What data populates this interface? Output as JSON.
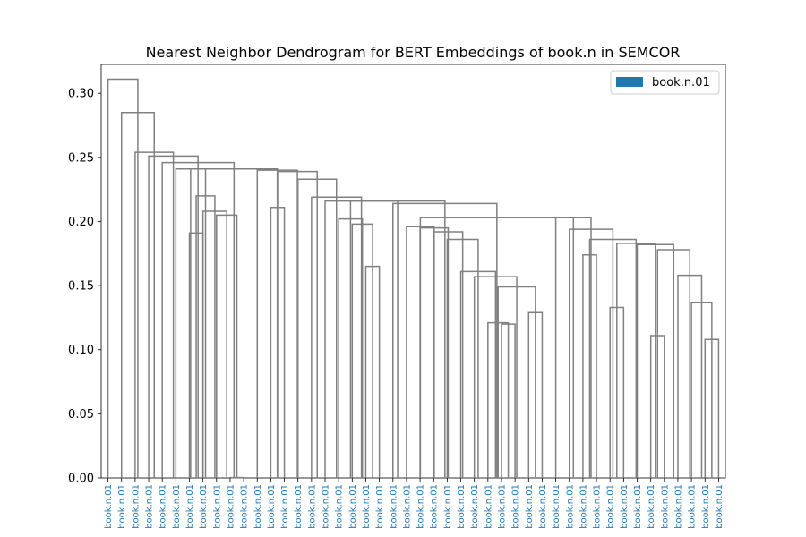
{
  "chart_data": {
    "type": "dendrogram",
    "title": "Nearest Neighbor Dendrogram for BERT Embeddings of book.n in SEMCOR",
    "xlabel": "",
    "ylabel": "",
    "ylim": [
      0,
      0.3225
    ],
    "y_ticks": [
      0.0,
      0.05,
      0.1,
      0.15,
      0.2,
      0.25,
      0.3
    ],
    "y_tick_labels": [
      "0.00",
      "0.05",
      "0.10",
      "0.15",
      "0.20",
      "0.25",
      "0.30"
    ],
    "grid": false,
    "legend": {
      "position": "top-right",
      "entries": [
        {
          "label": "book.n.01",
          "color": "#1f77b4"
        }
      ]
    },
    "leaf_label_color": "#1f77b4",
    "link_color": "#808080",
    "leaves": [
      "book.n.01",
      "book.n.01",
      "book.n.01",
      "book.n.01",
      "book.n.01",
      "book.n.01",
      "book.n.01",
      "book.n.01",
      "book.n.01",
      "book.n.01",
      "book.n.01",
      "book.n.01",
      "book.n.01",
      "book.n.01",
      "book.n.01",
      "book.n.01",
      "book.n.01",
      "book.n.01",
      "book.n.01",
      "book.n.01",
      "book.n.01",
      "book.n.01",
      "book.n.01",
      "book.n.01",
      "book.n.01",
      "book.n.01",
      "book.n.01",
      "book.n.01",
      "book.n.01",
      "book.n.01",
      "book.n.01",
      "book.n.01",
      "book.n.01",
      "book.n.01",
      "book.n.01",
      "book.n.01",
      "book.n.01",
      "book.n.01",
      "book.n.01",
      "book.n.01",
      "book.n.01",
      "book.n.01",
      "book.n.01",
      "book.n.01",
      "book.n.01",
      "book.n.01"
    ],
    "links": [
      {
        "x": [
          9,
          10
        ],
        "height": 0.0003
      },
      {
        "x": [
          6,
          7
        ],
        "height": 0.191
      },
      {
        "x": [
          12,
          13
        ],
        "height": 0.211
      },
      {
        "x": [
          19,
          20
        ],
        "height": 0.165
      },
      {
        "x": [
          29,
          30
        ],
        "height": 0.12
      },
      {
        "x": [
          28,
          29.5
        ],
        "height": 0.121
      },
      {
        "x": [
          31,
          32
        ],
        "height": 0.129
      },
      {
        "x": [
          28.75,
          31.5
        ],
        "height": 0.149
      },
      {
        "x": [
          27,
          30.125
        ],
        "height": 0.157
      },
      {
        "x": [
          26,
          28.5625
        ],
        "height": 0.161
      },
      {
        "x": [
          25,
          27.28
        ],
        "height": 0.186
      },
      {
        "x": [
          24,
          26.14
        ],
        "height": 0.192
      },
      {
        "x": [
          23,
          25.07
        ],
        "height": 0.195
      },
      {
        "x": [
          22,
          24.04
        ],
        "height": 0.196
      },
      {
        "x": [
          18,
          19.5
        ],
        "height": 0.198
      },
      {
        "x": [
          17,
          18.75
        ],
        "height": 0.202
      },
      {
        "x": [
          35,
          36
        ],
        "height": 0.174
      },
      {
        "x": [
          37,
          38
        ],
        "height": 0.133
      },
      {
        "x": [
          40,
          41
        ],
        "height": 0.111
      },
      {
        "x": [
          44,
          45
        ],
        "height": 0.108
      },
      {
        "x": [
          43,
          44.5
        ],
        "height": 0.137
      },
      {
        "x": [
          42,
          43.75
        ],
        "height": 0.158
      },
      {
        "x": [
          40.5,
          42.875
        ],
        "height": 0.178
      },
      {
        "x": [
          39,
          41.69
        ],
        "height": 0.182
      },
      {
        "x": [
          37.5,
          40.34
        ],
        "height": 0.183
      },
      {
        "x": [
          35.5,
          38.92
        ],
        "height": 0.186
      },
      {
        "x": [
          34,
          37.21
        ],
        "height": 0.194
      },
      {
        "x": [
          33,
          35.6
        ],
        "height": 0.203
      },
      {
        "x": [
          23.02,
          34.3
        ],
        "height": 0.203
      },
      {
        "x": [
          21,
          28.66
        ],
        "height": 0.214
      },
      {
        "x": [
          17.875,
          24.83
        ],
        "height": 0.216
      },
      {
        "x": [
          16,
          21.35
        ],
        "height": 0.216
      },
      {
        "x": [
          15,
          18.68
        ],
        "height": 0.219
      },
      {
        "x": [
          14,
          16.84
        ],
        "height": 0.233
      },
      {
        "x": [
          12.5,
          15.42
        ],
        "height": 0.239
      },
      {
        "x": [
          11,
          13.96
        ],
        "height": 0.24
      },
      {
        "x": [
          8,
          9.5
        ],
        "height": 0.205
      },
      {
        "x": [
          7,
          8.75
        ],
        "height": 0.208
      },
      {
        "x": [
          6.5,
          7.875
        ],
        "height": 0.22
      },
      {
        "x": [
          5,
          7.19
        ],
        "height": 0.241
      },
      {
        "x": [
          6.09,
          12.48
        ],
        "height": 0.241
      },
      {
        "x": [
          4,
          9.29
        ],
        "height": 0.246
      },
      {
        "x": [
          3,
          6.64
        ],
        "height": 0.251
      },
      {
        "x": [
          2,
          4.82
        ],
        "height": 0.254
      },
      {
        "x": [
          1,
          3.41
        ],
        "height": 0.285
      },
      {
        "x": [
          0,
          2.2
        ],
        "height": 0.311
      }
    ]
  }
}
